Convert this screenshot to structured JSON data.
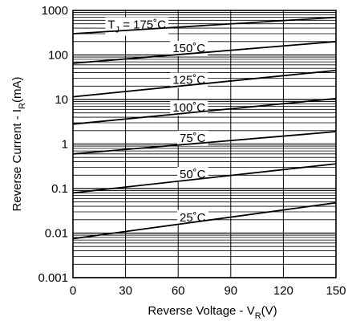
{
  "chart_data": {
    "type": "line",
    "x_scale": "linear",
    "y_scale": "log",
    "xlim": [
      0,
      150
    ],
    "ylim": [
      0.001,
      1000
    ],
    "xticks": [
      0,
      30,
      60,
      90,
      120,
      150
    ],
    "xtick_labels": [
      "0",
      "30",
      "60",
      "90",
      "120",
      "150"
    ],
    "yticks": [
      0.001,
      0.01,
      0.1,
      1,
      10,
      100,
      1000
    ],
    "ytick_labels": [
      "0.001",
      "0.01",
      "0.1",
      "1",
      "10",
      "100",
      "1000"
    ],
    "grid": true,
    "xlabel": {
      "main": "Reverse Voltage - V",
      "sub": "R",
      "unit": "(V)"
    },
    "ylabel": {
      "main": "Reverse Current - I",
      "sub": "R",
      "unit": "(mA)"
    },
    "series": [
      {
        "name": "175°C",
        "label": {
          "prefix": "T",
          "sub": "J",
          "text": " = 175˚C"
        },
        "label_x": 18,
        "x": [
          0,
          150
        ],
        "y": [
          300,
          700
        ]
      },
      {
        "name": "150°C",
        "label": {
          "prefix": "",
          "sub": "",
          "text": "150˚C"
        },
        "label_x": 55,
        "x": [
          0,
          150
        ],
        "y": [
          65,
          200
        ]
      },
      {
        "name": "125°C",
        "label": {
          "prefix": "",
          "sub": "",
          "text": "125˚C"
        },
        "label_x": 55,
        "x": [
          0,
          150
        ],
        "y": [
          11.5,
          45
        ]
      },
      {
        "name": "100°C",
        "label": {
          "prefix": "",
          "sub": "",
          "text": "100˚C"
        },
        "label_x": 55,
        "x": [
          0,
          150
        ],
        "y": [
          2.8,
          10.5
        ]
      },
      {
        "name": "75°C",
        "label": {
          "prefix": "",
          "sub": "",
          "text": "75˚C"
        },
        "label_x": 59,
        "x": [
          0,
          150
        ],
        "y": [
          0.6,
          1.9
        ]
      },
      {
        "name": "50°C",
        "label": {
          "prefix": "",
          "sub": "",
          "text": "50˚C"
        },
        "label_x": 59,
        "x": [
          0,
          150
        ],
        "y": [
          0.08,
          0.36
        ]
      },
      {
        "name": "25°C",
        "label": {
          "prefix": "",
          "sub": "",
          "text": "25˚C"
        },
        "label_x": 59,
        "x": [
          0,
          150
        ],
        "y": [
          0.0075,
          0.048
        ]
      }
    ]
  }
}
